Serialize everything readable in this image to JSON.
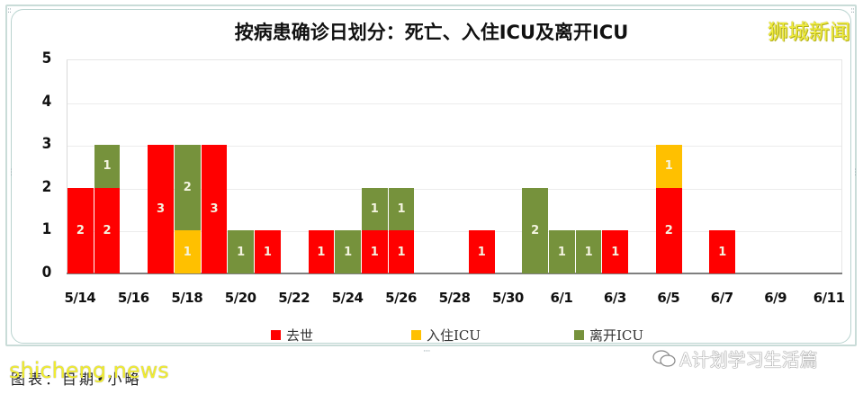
{
  "title": "按病患确诊日划分：死亡、入住ICU及离开ICU",
  "brand": "狮城新闻",
  "colors": {
    "death": "#FF0000",
    "icu_in": "#FFC000",
    "icu_out": "#76923C",
    "label": "#F4F4E0"
  },
  "legend": [
    {
      "label": "去世",
      "color": "#FF0000"
    },
    {
      "label": "入住ICU",
      "color": "#FFC000"
    },
    {
      "label": "离开ICU",
      "color": "#76923C"
    }
  ],
  "caption": "图表：目期•小略",
  "watermark_left": "shicheng.news",
  "watermark_right": "A计划学习生活篇",
  "chart_data": {
    "type": "bar",
    "stacked": true,
    "title": "按病患确诊日划分：死亡、入住ICU及离开ICU",
    "xlabel": "",
    "ylabel": "",
    "ylim": [
      0,
      5
    ],
    "yticks": [
      0,
      1,
      2,
      3,
      4,
      5
    ],
    "grid": true,
    "legend_position": "bottom",
    "xtick_labels": [
      "5/14",
      "5/16",
      "5/18",
      "5/20",
      "5/22",
      "5/24",
      "5/26",
      "5/28",
      "5/30",
      "6/1",
      "6/3",
      "6/5",
      "6/7",
      "6/9",
      "6/11"
    ],
    "categories": [
      "5/14",
      "5/15",
      "5/16",
      "5/17",
      "5/18",
      "5/19",
      "5/20",
      "5/21",
      "5/22",
      "5/23",
      "5/24",
      "5/25",
      "5/26",
      "5/27",
      "5/28",
      "5/29",
      "5/30",
      "5/31",
      "6/1",
      "6/2",
      "6/3",
      "6/4",
      "6/5",
      "6/6",
      "6/7",
      "6/8",
      "6/9",
      "6/10",
      "6/11"
    ],
    "series": [
      {
        "name": "去世",
        "color": "#FF0000",
        "values": [
          2,
          2,
          0,
          3,
          0,
          3,
          0,
          1,
          0,
          1,
          0,
          1,
          1,
          0,
          0,
          1,
          0,
          0,
          0,
          0,
          1,
          0,
          2,
          0,
          1,
          0,
          0,
          0,
          0
        ]
      },
      {
        "name": "入住ICU",
        "color": "#FFC000",
        "values": [
          0,
          0,
          0,
          0,
          1,
          0,
          0,
          0,
          0,
          0,
          0,
          0,
          0,
          0,
          0,
          0,
          0,
          0,
          0,
          0,
          0,
          0,
          1,
          0,
          0,
          0,
          0,
          0,
          0
        ]
      },
      {
        "name": "离开ICU",
        "color": "#76923C",
        "values": [
          0,
          1,
          0,
          0,
          2,
          0,
          1,
          0,
          0,
          0,
          1,
          1,
          1,
          0,
          0,
          0,
          0,
          2,
          1,
          1,
          0,
          0,
          0,
          0,
          0,
          0,
          0,
          0,
          0
        ]
      }
    ]
  }
}
